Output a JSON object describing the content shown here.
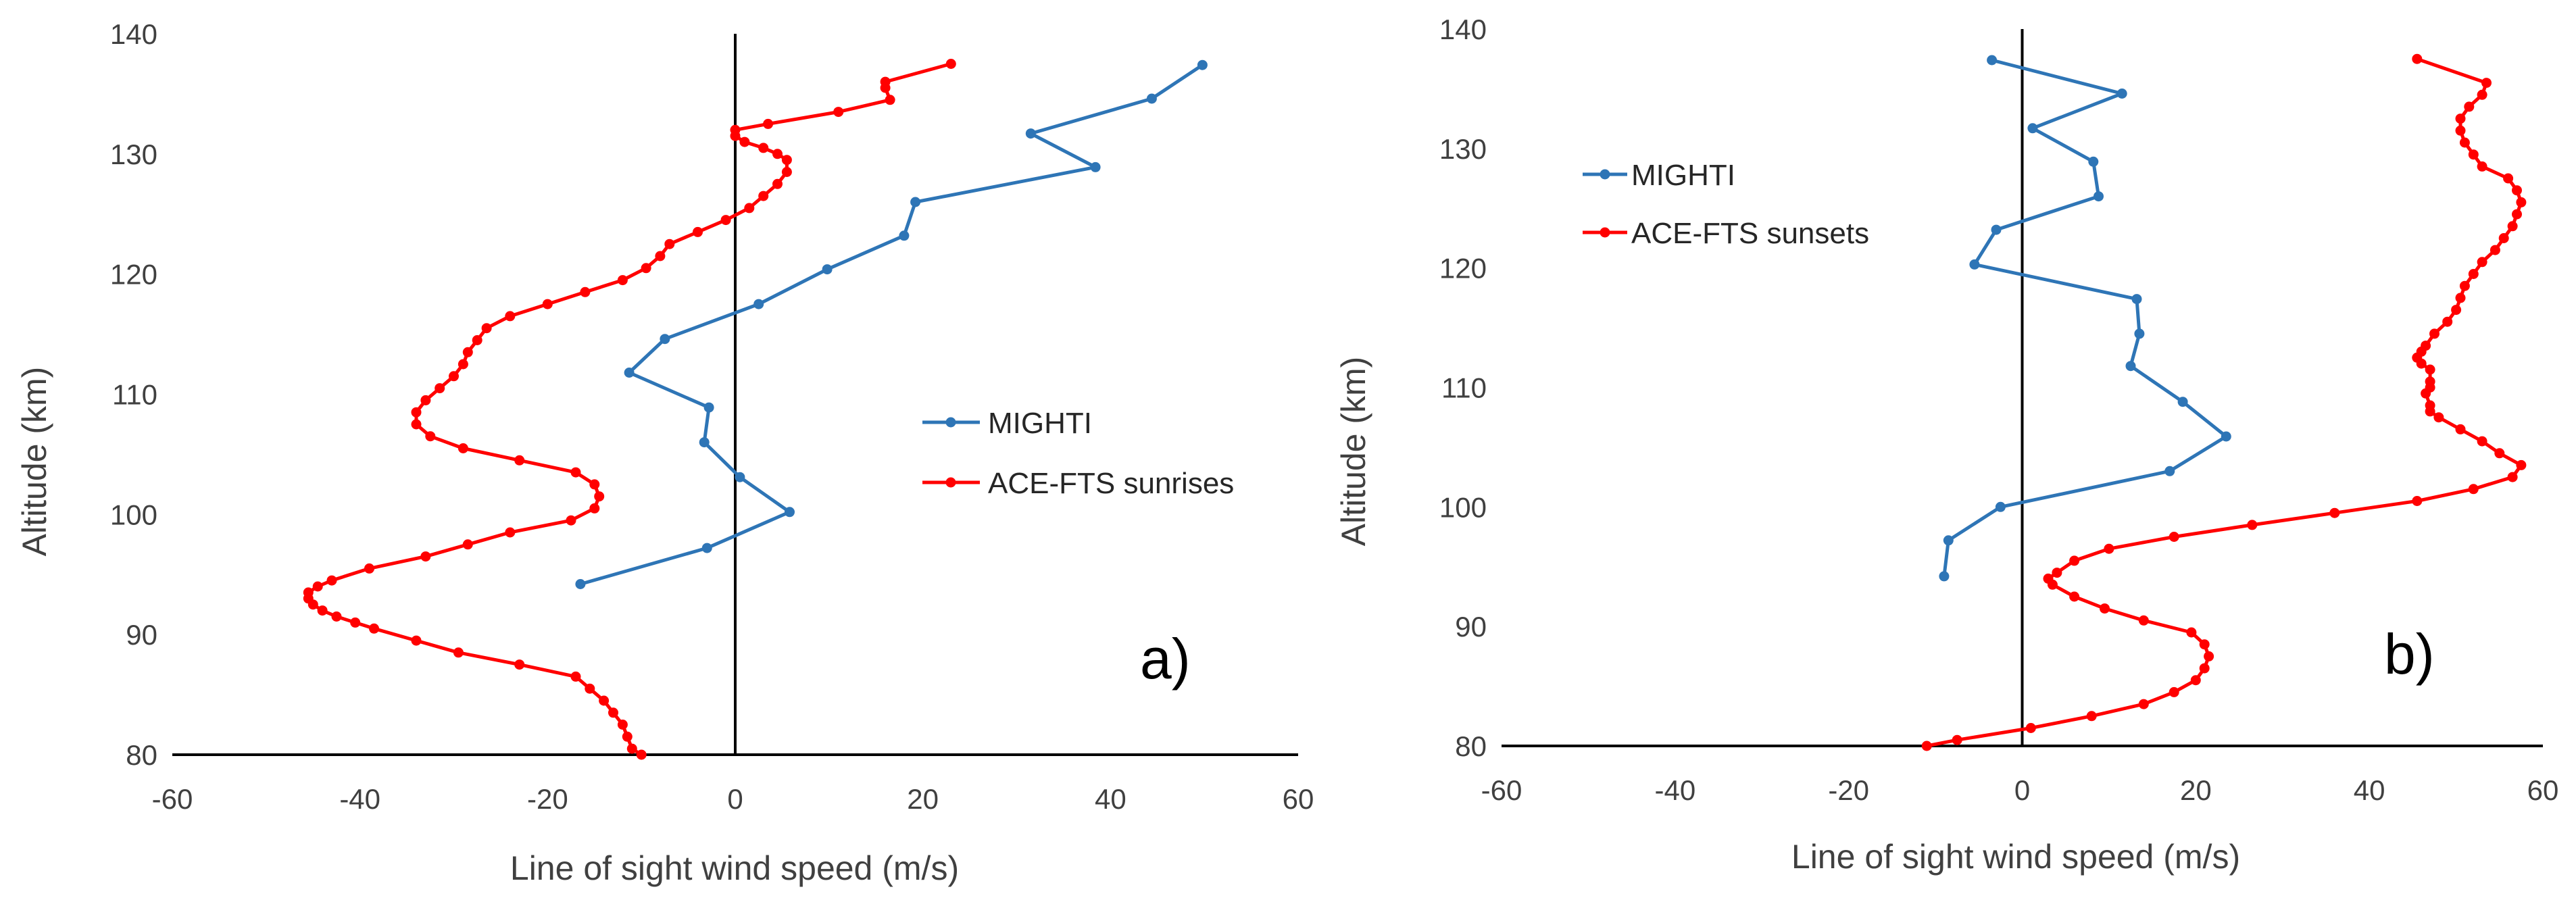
{
  "figure": {
    "mighti_color": "#2E75B6",
    "ace_color": "#FF0000",
    "axis_color": "#000000"
  },
  "chart_data": [
    {
      "type": "line",
      "panel_label": "a)",
      "xlabel": "Line of sight wind speed (m/s)",
      "ylabel": "Altitude (km)",
      "xlim": [
        -60,
        60
      ],
      "ylim": [
        80,
        140
      ],
      "xticks": [
        "-60",
        "-40",
        "-20",
        "0",
        "20",
        "40",
        "60"
      ],
      "yticks": [
        "80",
        "90",
        "100",
        "110",
        "120",
        "130",
        "140"
      ],
      "legend": [
        "MIGHTI",
        "ACE-FTS sunrises"
      ],
      "series": [
        {
          "name": "MIGHTI",
          "color": "#2E75B6",
          "x": [
            -16.5,
            -3,
            5.8,
            0.5,
            -3.3,
            -2.8,
            -11.3,
            -7.5,
            2.5,
            9.8,
            18,
            19.2,
            38.4,
            31.5,
            44.4,
            49.8
          ],
          "y": [
            94.2,
            97.2,
            100.2,
            103.1,
            106.0,
            108.9,
            111.8,
            114.6,
            117.5,
            120.4,
            123.2,
            126.0,
            128.9,
            131.7,
            134.6,
            137.4
          ]
        },
        {
          "name": "ACE-FTS sunrises",
          "color": "#FF0000",
          "x": [
            -10,
            -11,
            -11.5,
            -12,
            -13,
            -14,
            -15.5,
            -17,
            -23,
            -29.5,
            -34,
            -38.5,
            -40.5,
            -42.5,
            -44,
            -45,
            -45.5,
            -45.5,
            -44.5,
            -43,
            -39,
            -33,
            -28.5,
            -24,
            -17.5,
            -15,
            -14.5,
            -15,
            -17,
            -23,
            -29,
            -32.5,
            -34,
            -34,
            -33,
            -31.5,
            -30,
            -29,
            -28.5,
            -27.5,
            -26.5,
            -24,
            -20,
            -16,
            -12,
            -9.5,
            -8,
            -7,
            -4,
            -1,
            1.5,
            3,
            4.5,
            5.5,
            5.5,
            4.5,
            3,
            1,
            0,
            0,
            3.5,
            11,
            16.5,
            16,
            16,
            23
          ],
          "y": [
            80,
            80.5,
            81.5,
            82.5,
            83.5,
            84.5,
            85.5,
            86.5,
            87.5,
            88.5,
            89.5,
            90.5,
            91.0,
            91.5,
            92.0,
            92.5,
            93.0,
            93.5,
            94.0,
            94.5,
            95.5,
            96.5,
            97.5,
            98.5,
            99.5,
            100.5,
            101.5,
            102.5,
            103.5,
            104.5,
            105.5,
            106.5,
            107.5,
            108.5,
            109.5,
            110.5,
            111.5,
            112.5,
            113.5,
            114.5,
            115.5,
            116.5,
            117.5,
            118.5,
            119.5,
            120.5,
            121.5,
            122.5,
            123.5,
            124.5,
            125.5,
            126.5,
            127.5,
            128.5,
            129.5,
            130.0,
            130.5,
            131.0,
            131.5,
            132.0,
            132.5,
            133.5,
            134.5,
            135.5,
            136.0,
            137.5
          ]
        }
      ]
    },
    {
      "type": "line",
      "panel_label": "b)",
      "xlabel": "Line of sight wind speed (m/s)",
      "ylabel": "Altitude (km)",
      "xlim": [
        -60,
        60
      ],
      "ylim": [
        80,
        140
      ],
      "xticks": [
        "-60",
        "-40",
        "-20",
        "0",
        "20",
        "40",
        "60"
      ],
      "yticks": [
        "80",
        "90",
        "100",
        "110",
        "120",
        "130",
        "140"
      ],
      "legend": [
        "MIGHTI",
        "ACE-FTS sunsets"
      ],
      "series": [
        {
          "name": "MIGHTI",
          "color": "#2E75B6",
          "x": [
            -9,
            -8.5,
            -2.5,
            17,
            23.5,
            18.5,
            12.5,
            13.5,
            13.2,
            -5.5,
            -3,
            8.8,
            8.2,
            1.2,
            11.5,
            -3.5
          ],
          "y": [
            94.2,
            97.2,
            100.0,
            103.0,
            105.9,
            108.8,
            111.8,
            114.5,
            117.4,
            120.3,
            123.2,
            126.0,
            128.9,
            131.7,
            134.6,
            137.4
          ]
        },
        {
          "name": "ACE-FTS sunsets",
          "color": "#FF0000",
          "x": [
            -11,
            -7.5,
            1,
            8,
            14,
            17.5,
            20,
            21,
            21.5,
            21,
            19.5,
            14,
            9.5,
            6,
            3.5,
            3,
            4,
            6,
            10,
            17.5,
            26.5,
            36,
            45.5,
            52,
            56.5,
            57.5,
            55,
            53,
            50.5,
            48,
            47,
            47,
            46.5,
            47,
            47,
            47,
            46,
            45.5,
            46,
            46.5,
            47.5,
            49,
            50,
            50.5,
            51,
            52,
            53,
            54.5,
            55.5,
            56.5,
            57,
            57.5,
            57,
            56,
            53,
            52,
            51,
            50.5,
            50.5,
            51.5,
            53,
            53.5,
            45.5
          ],
          "y": [
            80,
            80.5,
            81.5,
            82.5,
            83.5,
            84.5,
            85.5,
            86.5,
            87.5,
            88.5,
            89.5,
            90.5,
            91.5,
            92.5,
            93.5,
            94.0,
            94.5,
            95.5,
            96.5,
            97.5,
            98.5,
            99.5,
            100.5,
            101.5,
            102.5,
            103.5,
            104.5,
            105.5,
            106.5,
            107.5,
            108.0,
            108.5,
            109.5,
            110.0,
            110.5,
            111.5,
            112.0,
            112.5,
            113.0,
            113.5,
            114.5,
            115.5,
            116.5,
            117.5,
            118.5,
            119.5,
            120.5,
            121.5,
            122.5,
            123.5,
            124.5,
            125.5,
            126.5,
            127.5,
            128.5,
            129.5,
            130.5,
            131.5,
            132.5,
            133.5,
            134.5,
            135.5,
            137.5
          ]
        }
      ]
    }
  ]
}
